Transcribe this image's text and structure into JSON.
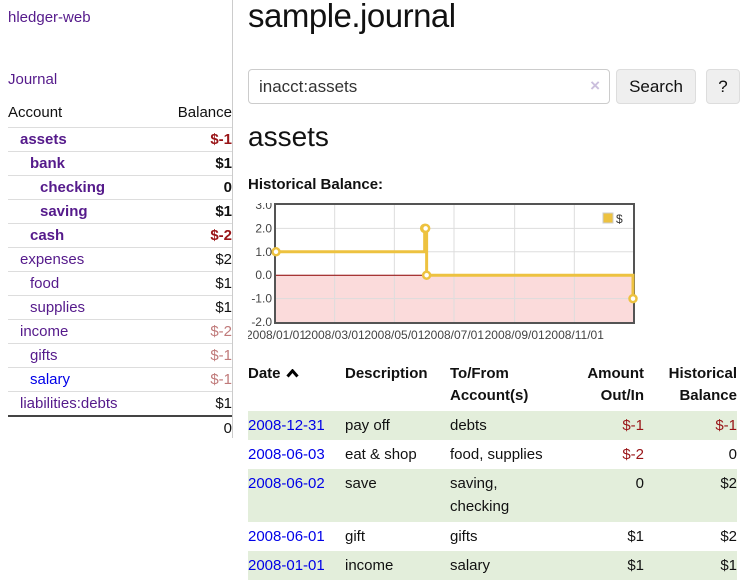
{
  "sidebar": {
    "app_title": "hledger-web",
    "journal_label": "Journal",
    "accounts": {
      "col_account": "Account",
      "col_balance": "Balance",
      "rows": [
        {
          "name": "assets",
          "depth": 1,
          "bold": true,
          "link_color": "purple",
          "balance": "$-1",
          "balance_class": "bal-neg-strong"
        },
        {
          "name": "bank",
          "depth": 2,
          "bold": true,
          "link_color": "purple",
          "balance": "$1",
          "balance_class": ""
        },
        {
          "name": "checking",
          "depth": 3,
          "bold": true,
          "link_color": "purple",
          "balance": "0",
          "balance_class": ""
        },
        {
          "name": "saving",
          "depth": 3,
          "bold": true,
          "link_color": "purple",
          "balance": "$1",
          "balance_class": ""
        },
        {
          "name": "cash",
          "depth": 2,
          "bold": true,
          "link_color": "purple",
          "balance": "$-2",
          "balance_class": "bal-neg-strong"
        },
        {
          "name": "expenses",
          "depth": 1,
          "bold": false,
          "link_color": "purple",
          "balance": "$2",
          "balance_class": ""
        },
        {
          "name": "food",
          "depth": 2,
          "bold": false,
          "link_color": "purple",
          "balance": "$1",
          "balance_class": ""
        },
        {
          "name": "supplies",
          "depth": 2,
          "bold": false,
          "link_color": "purple",
          "balance": "$1",
          "balance_class": ""
        },
        {
          "name": "income",
          "depth": 1,
          "bold": false,
          "link_color": "purple",
          "balance": "$-2",
          "balance_class": "bal-neg-soft"
        },
        {
          "name": "gifts",
          "depth": 2,
          "bold": false,
          "link_color": "purple",
          "balance": "$-1",
          "balance_class": "bal-neg-soft"
        },
        {
          "name": "salary",
          "depth": 2,
          "bold": false,
          "link_color": "blue",
          "balance": "$-1",
          "balance_class": "bal-neg-soft"
        },
        {
          "name": "liabilities:debts",
          "depth": 1,
          "bold": false,
          "link_color": "purple",
          "balance": "$1",
          "balance_class": ""
        }
      ],
      "total": "0"
    }
  },
  "main": {
    "title": "sample.journal",
    "search": {
      "value": "inacct:assets",
      "clear_icon": "×",
      "button_label": "Search",
      "help_label": "?"
    },
    "account_heading": "assets",
    "chart_label": "Historical Balance:"
  },
  "chart_data": {
    "type": "line",
    "title": "Historical Balance",
    "legend": {
      "label": "$",
      "position": "top-right"
    },
    "step": true,
    "points": [
      {
        "date": "2008-01-01",
        "day": 0,
        "value": 1
      },
      {
        "date": "2008-06-01",
        "day": 152,
        "value": 2
      },
      {
        "date": "2008-06-02",
        "day": 153,
        "value": 2
      },
      {
        "date": "2008-06-03",
        "day": 154,
        "value": 0
      },
      {
        "date": "2008-12-31",
        "day": 365,
        "value": -1
      }
    ],
    "x_ticks": [
      {
        "label": "2008/01/01",
        "day": 0
      },
      {
        "label": "2008/03/01",
        "day": 60
      },
      {
        "label": "2008/05/01",
        "day": 121
      },
      {
        "label": "2008/07/01",
        "day": 182
      },
      {
        "label": "2008/09/01",
        "day": 244
      },
      {
        "label": "2008/11/01",
        "day": 305
      }
    ],
    "y_ticks": [
      -2,
      -1,
      0,
      1,
      2,
      3
    ],
    "ylim": [
      -2,
      3
    ],
    "xlim_days": [
      0,
      365
    ],
    "grid": true,
    "colors": {
      "line": "#edc240",
      "zero_line": "#8b0000",
      "negative_fill": "#fbdbdb",
      "grid": "#dddddd",
      "border": "#545454",
      "tick_text": "#444444"
    }
  },
  "register": {
    "headers": {
      "date": "Date",
      "description": "Description",
      "accounts": "To/From Account(s)",
      "amount": "Amount Out/In",
      "balance": "Historical Balance"
    },
    "sort": {
      "column": "date",
      "direction": "asc"
    },
    "rows": [
      {
        "date": "2008-12-31",
        "description": "pay off",
        "accounts": "debts",
        "amount": "$-1",
        "amount_neg": true,
        "balance": "$-1",
        "balance_neg": true
      },
      {
        "date": "2008-06-03",
        "description": "eat & shop",
        "accounts": "food, supplies",
        "amount": "$-2",
        "amount_neg": true,
        "balance": "0",
        "balance_neg": false
      },
      {
        "date": "2008-06-02",
        "description": "save",
        "accounts": "saving, checking",
        "amount": "0",
        "amount_neg": false,
        "balance": "$2",
        "balance_neg": false
      },
      {
        "date": "2008-06-01",
        "description": "gift",
        "accounts": "gifts",
        "amount": "$1",
        "amount_neg": false,
        "balance": "$2",
        "balance_neg": false
      },
      {
        "date": "2008-01-01",
        "description": "income",
        "accounts": "salary",
        "amount": "$1",
        "amount_neg": false,
        "balance": "$1",
        "balance_neg": false
      }
    ]
  },
  "colors": {
    "link_purple": "#551a8b",
    "link_blue": "#0000e8",
    "negative_strong": "#991417",
    "negative_soft": "#c07a7a",
    "row_stripe_green": "#e3eedb",
    "series_yellow": "#edc240"
  }
}
